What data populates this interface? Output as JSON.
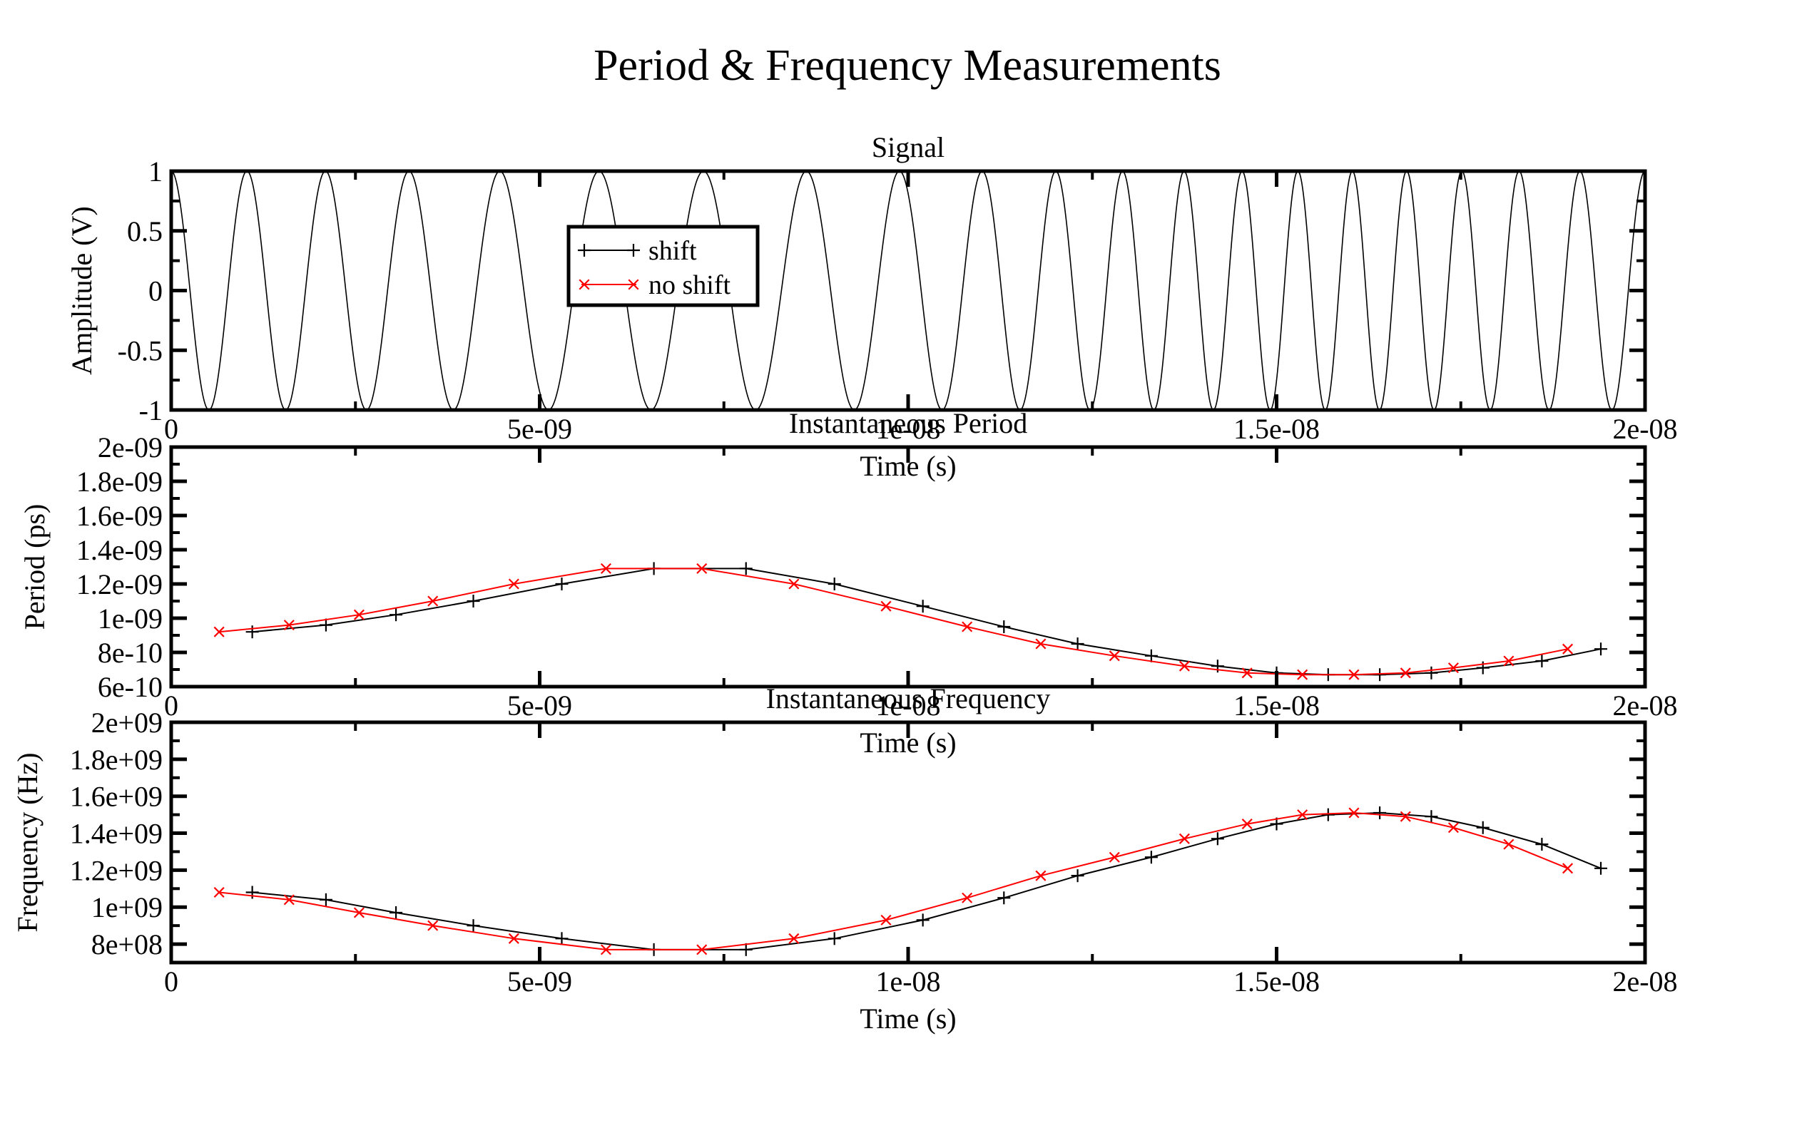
{
  "title": "Period & Frequency Measurements",
  "legend": {
    "placement": "inside top-left of first panel",
    "entries": [
      {
        "name": "shift",
        "marker": "plus",
        "color": "#000000"
      },
      {
        "name": "no shift",
        "marker": "cross",
        "color": "#ff0000"
      }
    ]
  },
  "chart_data": [
    {
      "type": "line",
      "title": "Signal",
      "xlabel": "Time (s)",
      "ylabel": "Amplitude (V)",
      "xlim": [
        0,
        2e-08
      ],
      "ylim": [
        -1,
        1
      ],
      "xticks": [
        "0",
        "5e-09",
        "1e-08",
        "1.5e-08",
        "2e-08"
      ],
      "yticks": [
        "-1",
        "-0.5",
        "0",
        "0.5",
        "1"
      ],
      "grid": false,
      "signal": {
        "function": "cosine chirp",
        "amplitude": 1,
        "cycles": 20,
        "color": "#000000",
        "x_samples": [
          0,
          1e-09,
          2e-09,
          3e-09,
          4e-09,
          5e-09,
          6e-09,
          7e-09,
          8e-09,
          9e-09,
          1e-08,
          1.1e-08,
          1.2e-08,
          1.3e-08,
          1.4e-08,
          1.5e-08,
          1.6e-08,
          1.7e-08,
          1.8e-08,
          1.9e-08,
          2e-08
        ],
        "frequency_hz": [
          1080000000.0,
          1060000000.0,
          1010000000.0,
          950000000.0,
          880000000.0,
          820000000.0,
          780000000.0,
          770000000.0,
          780000000.0,
          850000000.0,
          930000000.0,
          1040000000.0,
          1160000000.0,
          1280000000.0,
          1390000000.0,
          1460000000.0,
          1500000000.0,
          1480000000.0,
          1410000000.0,
          1300000000.0,
          1200000000.0
        ]
      }
    },
    {
      "type": "line",
      "title": "Instantaneous Period",
      "xlabel": "Time (s)",
      "ylabel": "Period (ps)",
      "xlim": [
        0,
        2e-08
      ],
      "ylim": [
        6e-10,
        2e-09
      ],
      "xticks": [
        "0",
        "5e-09",
        "1e-08",
        "1.5e-08",
        "2e-08"
      ],
      "yticks": [
        "6e-10",
        "8e-10",
        "1e-09",
        "1.2e-09",
        "1.4e-09",
        "1.6e-09",
        "1.8e-09",
        "2e-09"
      ],
      "grid": false,
      "series": [
        {
          "name": "shift",
          "color": "#000000",
          "marker": "plus",
          "x": [
            1.1e-09,
            2.1e-09,
            3.05e-09,
            4.1e-09,
            5.3e-09,
            6.55e-09,
            7.8e-09,
            9e-09,
            1.02e-08,
            1.13e-08,
            1.23e-08,
            1.33e-08,
            1.42e-08,
            1.5e-08,
            1.57e-08,
            1.64e-08,
            1.71e-08,
            1.78e-08,
            1.86e-08,
            1.94e-08
          ],
          "y": [
            9.2e-10,
            9.6e-10,
            1.02e-09,
            1.1e-09,
            1.2e-09,
            1.29e-09,
            1.29e-09,
            1.2e-09,
            1.07e-09,
            9.5e-10,
            8.5e-10,
            7.8e-10,
            7.2e-10,
            6.8e-10,
            6.7e-10,
            6.7e-10,
            6.8e-10,
            7.1e-10,
            7.5e-10,
            8.2e-10
          ]
        },
        {
          "name": "no shift",
          "color": "#ff0000",
          "marker": "cross",
          "x": [
            6.5e-10,
            1.6e-09,
            2.55e-09,
            3.55e-09,
            4.65e-09,
            5.9e-09,
            7.2e-09,
            8.45e-09,
            9.7e-09,
            1.08e-08,
            1.18e-08,
            1.28e-08,
            1.375e-08,
            1.46e-08,
            1.535e-08,
            1.605e-08,
            1.675e-08,
            1.74e-08,
            1.815e-08,
            1.895e-08
          ],
          "y": [
            9.2e-10,
            9.6e-10,
            1.02e-09,
            1.1e-09,
            1.2e-09,
            1.29e-09,
            1.29e-09,
            1.2e-09,
            1.07e-09,
            9.5e-10,
            8.5e-10,
            7.8e-10,
            7.2e-10,
            6.8e-10,
            6.7e-10,
            6.7e-10,
            6.8e-10,
            7.1e-10,
            7.5e-10,
            8.2e-10
          ]
        }
      ]
    },
    {
      "type": "line",
      "title": "Instantaneous Frequency",
      "xlabel": "Time (s)",
      "ylabel": "Frequency (Hz)",
      "xlim": [
        0,
        2e-08
      ],
      "ylim": [
        700000000.0,
        2000000000.0
      ],
      "xticks": [
        "0",
        "5e-09",
        "1e-08",
        "1.5e-08",
        "2e-08"
      ],
      "yticks": [
        "8e+08",
        "1e+09",
        "1.2e+09",
        "1.4e+09",
        "1.6e+09",
        "1.8e+09",
        "2e+09"
      ],
      "grid": false,
      "series": [
        {
          "name": "shift",
          "color": "#000000",
          "marker": "plus",
          "x": [
            1.1e-09,
            2.1e-09,
            3.05e-09,
            4.1e-09,
            5.3e-09,
            6.55e-09,
            7.8e-09,
            9e-09,
            1.02e-08,
            1.13e-08,
            1.23e-08,
            1.33e-08,
            1.42e-08,
            1.5e-08,
            1.57e-08,
            1.64e-08,
            1.71e-08,
            1.78e-08,
            1.86e-08,
            1.94e-08
          ],
          "y": [
            1080000000.0,
            1040000000.0,
            970000000.0,
            900000000.0,
            830000000.0,
            770000000.0,
            770000000.0,
            830000000.0,
            930000000.0,
            1050000000.0,
            1170000000.0,
            1270000000.0,
            1370000000.0,
            1450000000.0,
            1500000000.0,
            1510000000.0,
            1490000000.0,
            1430000000.0,
            1340000000.0,
            1210000000.0
          ]
        },
        {
          "name": "no shift",
          "color": "#ff0000",
          "marker": "cross",
          "x": [
            6.5e-10,
            1.6e-09,
            2.55e-09,
            3.55e-09,
            4.65e-09,
            5.9e-09,
            7.2e-09,
            8.45e-09,
            9.7e-09,
            1.08e-08,
            1.18e-08,
            1.28e-08,
            1.375e-08,
            1.46e-08,
            1.535e-08,
            1.605e-08,
            1.675e-08,
            1.74e-08,
            1.815e-08,
            1.895e-08
          ],
          "y": [
            1080000000.0,
            1040000000.0,
            970000000.0,
            900000000.0,
            830000000.0,
            770000000.0,
            770000000.0,
            830000000.0,
            930000000.0,
            1050000000.0,
            1170000000.0,
            1270000000.0,
            1370000000.0,
            1450000000.0,
            1500000000.0,
            1510000000.0,
            1490000000.0,
            1430000000.0,
            1340000000.0,
            1210000000.0
          ]
        }
      ]
    }
  ]
}
